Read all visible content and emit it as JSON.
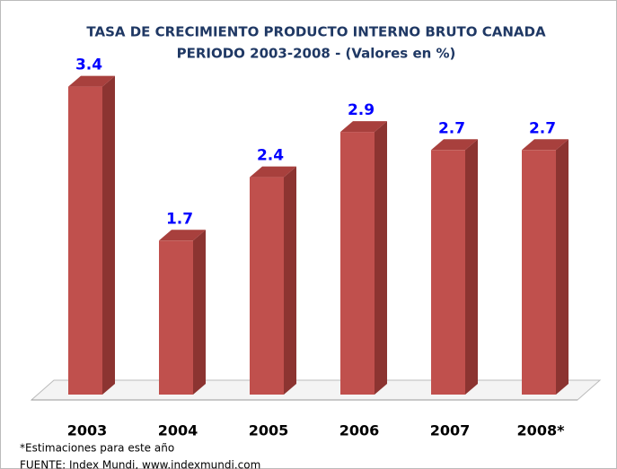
{
  "chart_data": {
    "type": "bar",
    "title": "TASA DE CRECIMIENTO PRODUCTO INTERNO BRUTO CANADA",
    "subtitle": "PERIODO 2003-2008 - (Valores en %)",
    "categories": [
      "2003",
      "2004",
      "2005",
      "2006",
      "2007",
      "2008*"
    ],
    "values": [
      3.4,
      1.7,
      2.4,
      2.9,
      2.7,
      2.7
    ],
    "color": "#c0504d",
    "value_label_color": "#0000ff",
    "footnote": "*Estimaciones para este año",
    "source": "FUENTE: Index Mundi, www.indexmundi.com"
  }
}
